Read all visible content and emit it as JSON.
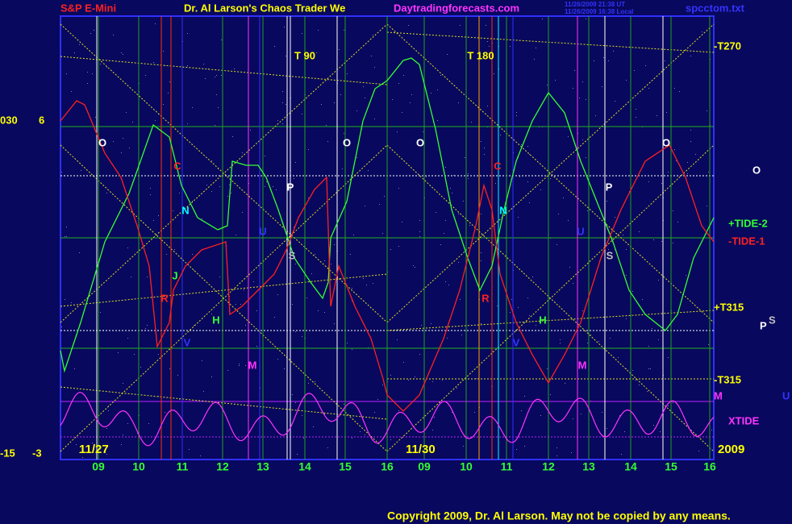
{
  "header": {
    "left": "S&P E-Mini",
    "title": "Dr. Al Larson's Chaos Trader We",
    "site": "Daytradingforecasts.com",
    "time_ut": "11/26/2009 21:38 UT",
    "time_local": "11/26/2009 16:38 Local",
    "file": "spcctom.txt"
  },
  "left_scale": {
    "top_a": "030",
    "top_b": "6",
    "bottom_a": "-15",
    "bottom_b": "-3"
  },
  "right_labels": {
    "t270": "-T270",
    "tide2": "+TIDE-2",
    "tide1": "-TIDE-1",
    "t315p": "+T315",
    "t315m": "-T315",
    "xtide": "XTIDE",
    "year": "2009",
    "m": "M",
    "u": "U",
    "o": "O",
    "p": "P",
    "s": "S"
  },
  "markers": [
    {
      "text": "T  90"
    },
    {
      "text": "T  180"
    },
    {
      "text": "O"
    },
    {
      "text": "O"
    },
    {
      "text": "O"
    },
    {
      "text": "O"
    },
    {
      "text": "C"
    },
    {
      "text": "C"
    },
    {
      "text": "N"
    },
    {
      "text": "N"
    },
    {
      "text": "P"
    },
    {
      "text": "P"
    },
    {
      "text": "U"
    },
    {
      "text": "U"
    },
    {
      "text": "S"
    },
    {
      "text": "S"
    },
    {
      "text": "J"
    },
    {
      "text": "R"
    },
    {
      "text": "R"
    },
    {
      "text": "H"
    },
    {
      "text": "H"
    },
    {
      "text": "V"
    },
    {
      "text": "V"
    },
    {
      "text": "M"
    },
    {
      "text": "M"
    }
  ],
  "dates": [
    "11/27",
    "11/30"
  ],
  "hours": [
    "09",
    "10",
    "11",
    "12",
    "13",
    "14",
    "15",
    "16",
    "09",
    "10",
    "11",
    "12",
    "13",
    "14",
    "15",
    "16"
  ],
  "footer": "Copyright 2009, Dr. Al Larson. May not be copied by any means."
}
